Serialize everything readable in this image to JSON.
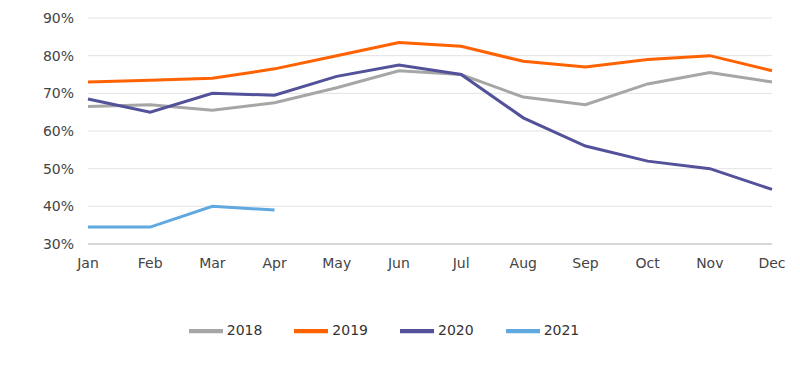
{
  "chart_data": {
    "type": "line",
    "categories": [
      "Jan",
      "Feb",
      "Mar",
      "Apr",
      "May",
      "Jun",
      "Jul",
      "Aug",
      "Sep",
      "Oct",
      "Nov",
      "Dec"
    ],
    "series": [
      {
        "name": "2018",
        "color": "#a6a6a6",
        "values": [
          66.5,
          67,
          65.5,
          67.5,
          71.5,
          76,
          75,
          69,
          67,
          72.5,
          75.5,
          73
        ]
      },
      {
        "name": "2019",
        "color": "#ff6200",
        "values": [
          73,
          73.5,
          74,
          76.5,
          80,
          83.5,
          82.5,
          78.5,
          77,
          79,
          80,
          76
        ]
      },
      {
        "name": "2020",
        "color": "#525199",
        "values": [
          68.5,
          65,
          70,
          69.5,
          74.5,
          77.5,
          75,
          63.5,
          56,
          52,
          50,
          44.5
        ]
      },
      {
        "name": "2021",
        "color": "#60a8e0",
        "values": [
          34.5,
          34.5,
          40,
          39,
          null,
          null,
          null,
          null,
          null,
          null,
          null,
          null
        ]
      }
    ],
    "ylim": [
      30,
      90
    ],
    "yticks": [
      {
        "value": 30,
        "label": "30%"
      },
      {
        "value": 40,
        "label": "40%"
      },
      {
        "value": 50,
        "label": "50%"
      },
      {
        "value": 60,
        "label": "60%"
      },
      {
        "value": 70,
        "label": "70%"
      },
      {
        "value": 80,
        "label": "80%"
      },
      {
        "value": 90,
        "label": "90%"
      }
    ],
    "grid": true,
    "legend": "bottom"
  }
}
